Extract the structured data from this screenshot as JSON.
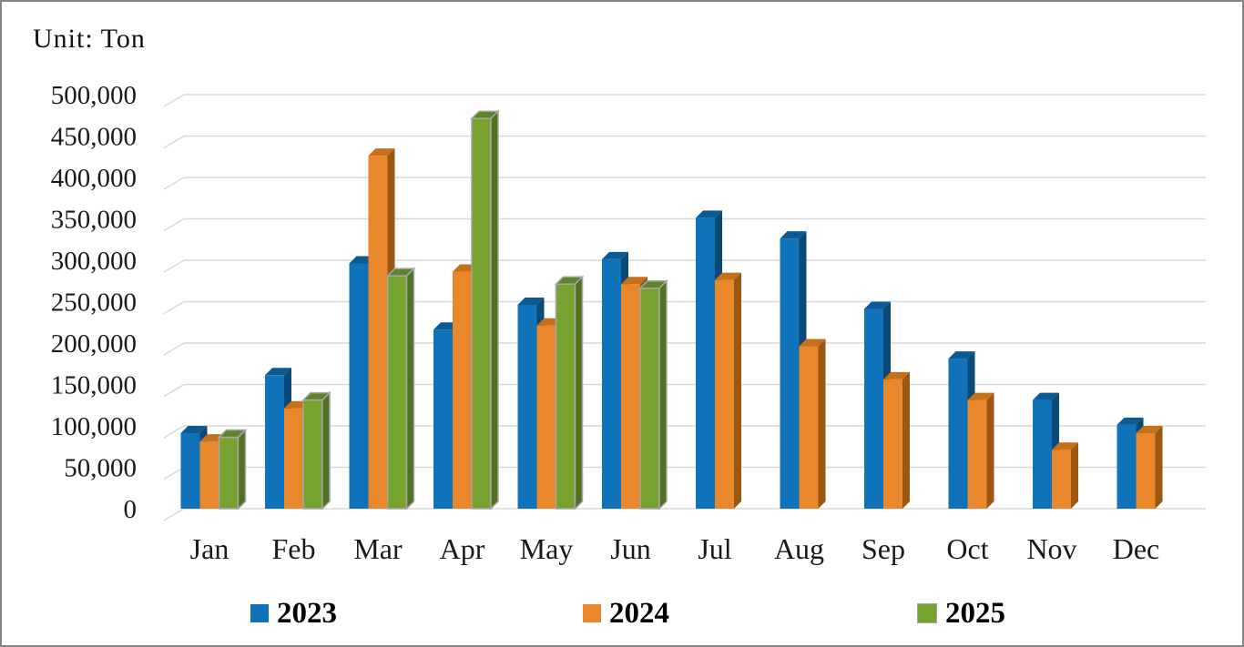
{
  "chart_data": {
    "type": "bar",
    "style": "3d-clustered-column",
    "unit_label": "Unit: Ton",
    "categories": [
      "Jan",
      "Feb",
      "Mar",
      "Apr",
      "May",
      "Jun",
      "Jul",
      "Aug",
      "Sep",
      "Oct",
      "Nov",
      "Dec"
    ],
    "series": [
      {
        "name": "2023",
        "color": "#1072B8",
        "top_color": "#0D5A93",
        "side_color": "#0A4876",
        "values": [
          100000,
          170000,
          305000,
          225000,
          255000,
          310000,
          360000,
          335000,
          250000,
          190000,
          140000,
          110000
        ]
      },
      {
        "name": "2024",
        "color": "#E8872B",
        "top_color": "#C4711B",
        "side_color": "#9C5712",
        "values": [
          90000,
          130000,
          435000,
          295000,
          230000,
          280000,
          285000,
          205000,
          165000,
          140000,
          80000,
          100000
        ]
      },
      {
        "name": "2025",
        "color": "#78A22F",
        "top_color": "#5D8428",
        "side_color": "#4E7222",
        "outline_color": "#A6A6A6",
        "values": [
          95000,
          140000,
          290000,
          480000,
          280000,
          275000,
          null,
          null,
          null,
          null,
          null,
          null
        ]
      }
    ],
    "ylim": [
      0,
      500000
    ],
    "ytick_interval": 50000,
    "ytick_labels": [
      "500,000",
      "450,000",
      "400,000",
      "350,000",
      "300,000",
      "250,000",
      "200,000",
      "150,000",
      "100,000",
      "50,000",
      "0"
    ],
    "grid": true,
    "gridline_color": "#D9D9D9",
    "text_color": "#1A1A1A",
    "legend_position": "bottom"
  }
}
